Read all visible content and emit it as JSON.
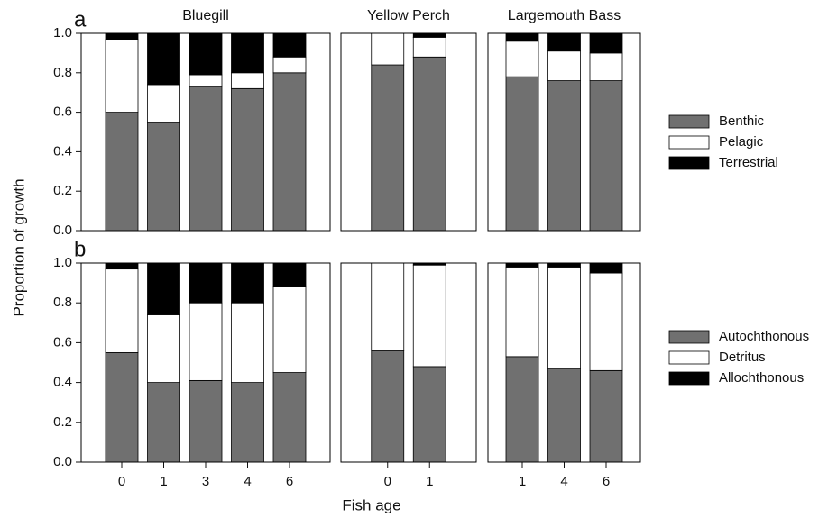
{
  "y_axis_label": "Proportion of growth",
  "x_axis_label": "Fish age",
  "chart_data": [
    {
      "type": "bar",
      "stacked": true,
      "panel_label": "a",
      "ylim": [
        0,
        1
      ],
      "yticks": [
        {
          "value": 0,
          "label": "0.0"
        },
        {
          "value": 0.2,
          "label": "0.2"
        },
        {
          "value": 0.4,
          "label": "0.4"
        },
        {
          "value": 0.6,
          "label": "0.6"
        },
        {
          "value": 0.8,
          "label": "0.8"
        },
        {
          "value": 1,
          "label": "1.0"
        }
      ],
      "legend": [
        {
          "name": "Benthic",
          "color": "#707070"
        },
        {
          "name": "Pelagic",
          "color": "#ffffff"
        },
        {
          "name": "Terrestrial",
          "color": "#000000"
        }
      ],
      "panels": [
        {
          "title": "Bluegill",
          "series": [
            {
              "values": [
                0.6,
                0.55,
                0.73,
                0.72,
                0.8
              ]
            },
            {
              "values": [
                0.37,
                0.19,
                0.06,
                0.08,
                0.08
              ]
            },
            {
              "values": [
                0.03,
                0.26,
                0.21,
                0.2,
                0.12
              ]
            }
          ]
        },
        {
          "title": "Yellow Perch",
          "series": [
            {
              "values": [
                0.84,
                0.88
              ]
            },
            {
              "values": [
                0.16,
                0.1
              ]
            },
            {
              "values": [
                0,
                0.02
              ]
            }
          ]
        },
        {
          "title": "Largemouth Bass",
          "series": [
            {
              "values": [
                0.78,
                0.76,
                0.76
              ]
            },
            {
              "values": [
                0.18,
                0.15,
                0.14
              ]
            },
            {
              "values": [
                0.04,
                0.09,
                0.1
              ]
            }
          ]
        }
      ]
    },
    {
      "type": "bar",
      "stacked": true,
      "panel_label": "b",
      "ylim": [
        0,
        1
      ],
      "yticks": [
        {
          "value": 0,
          "label": "0.0"
        },
        {
          "value": 0.2,
          "label": "0.2"
        },
        {
          "value": 0.4,
          "label": "0.4"
        },
        {
          "value": 0.6,
          "label": "0.6"
        },
        {
          "value": 0.8,
          "label": "0.8"
        },
        {
          "value": 1,
          "label": "1.0"
        }
      ],
      "legend": [
        {
          "name": "Autochthonous",
          "color": "#707070"
        },
        {
          "name": "Detritus",
          "color": "#ffffff"
        },
        {
          "name": "Allochthonous",
          "color": "#000000"
        }
      ],
      "panels": [
        {
          "categories": [
            "0",
            "1",
            "3",
            "4",
            "6"
          ],
          "series": [
            {
              "values": [
                0.55,
                0.4,
                0.41,
                0.4,
                0.45
              ]
            },
            {
              "values": [
                0.42,
                0.34,
                0.39,
                0.4,
                0.43
              ]
            },
            {
              "values": [
                0.03,
                0.26,
                0.2,
                0.2,
                0.12
              ]
            }
          ]
        },
        {
          "categories": [
            "0",
            "1"
          ],
          "series": [
            {
              "values": [
                0.56,
                0.48
              ]
            },
            {
              "values": [
                0.44,
                0.51
              ]
            },
            {
              "values": [
                0,
                0.01
              ]
            }
          ]
        },
        {
          "categories": [
            "1",
            "4",
            "6"
          ],
          "series": [
            {
              "values": [
                0.53,
                0.47,
                0.46
              ]
            },
            {
              "values": [
                0.45,
                0.51,
                0.49
              ]
            },
            {
              "values": [
                0.02,
                0.02,
                0.05
              ]
            }
          ]
        }
      ]
    }
  ]
}
